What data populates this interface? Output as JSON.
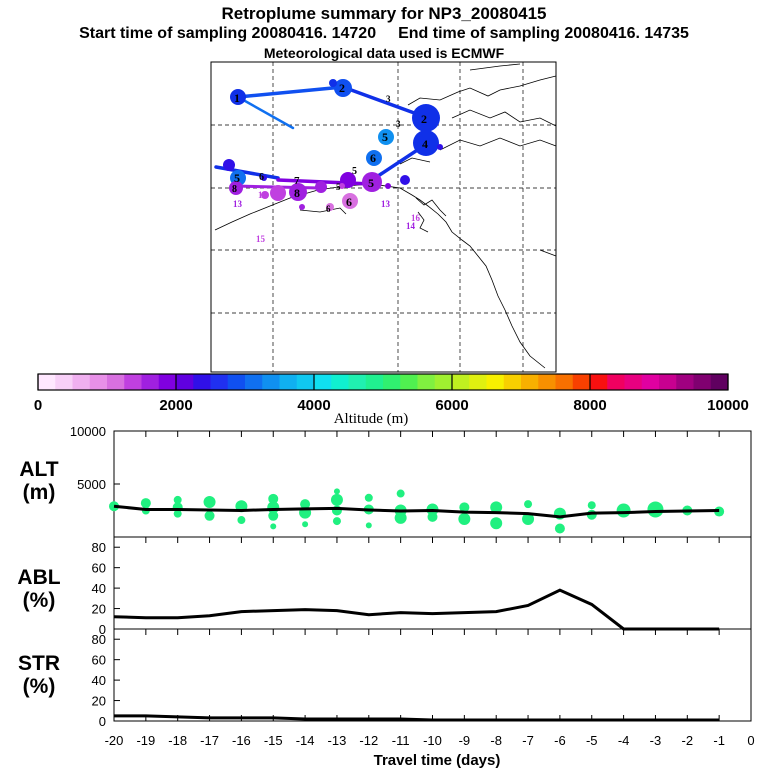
{
  "header": {
    "title": "Retroplume summary for NP3_20080415",
    "start_label": "Start time of sampling 20080416. 14720",
    "end_label": "End time of sampling 20080416. 14735",
    "met_label": "Meteorological data used is ECMWF"
  },
  "colorbar": {
    "min": 0,
    "max": 10000,
    "label": "Altitude (m)",
    "tick_labels": [
      "0",
      "2000",
      "4000",
      "6000",
      "8000",
      "10000"
    ],
    "tick_values": [
      0,
      2000,
      4000,
      6000,
      8000,
      10000
    ],
    "colors": [
      "#ffe8ff",
      "#f8d0f8",
      "#f0b0f0",
      "#e890e8",
      "#d870e0",
      "#c040e0",
      "#a020e0",
      "#8000e0",
      "#6000e0",
      "#3010e8",
      "#2030f0",
      "#1050f0",
      "#1070f0",
      "#1090f0",
      "#10b0f0",
      "#10c8f0",
      "#10e0f0",
      "#10f0d0",
      "#20f0b0",
      "#20f090",
      "#30f070",
      "#50f050",
      "#80f040",
      "#a0f030",
      "#c0f020",
      "#e0f010",
      "#f8f000",
      "#f8d000",
      "#f8b000",
      "#f89000",
      "#f87000",
      "#f84000",
      "#f81010",
      "#f00060",
      "#e80080",
      "#e000a0",
      "#c80090",
      "#a00080",
      "#800070",
      "#600060"
    ]
  },
  "chart_data": [
    {
      "type": "scatter",
      "title": "ALT (m)",
      "ylabel": "ALT (m)",
      "ylim": [
        0,
        10000
      ],
      "xlim": [
        -20,
        0
      ],
      "ytick_labels": [
        "5000",
        "10000"
      ],
      "median_line": {
        "x": [
          -20,
          -19,
          -18,
          -17,
          -16,
          -15,
          -14,
          -13,
          -12,
          -11,
          -10,
          -9,
          -8,
          -7,
          -6,
          -5,
          -4,
          -3,
          -2,
          -1
        ],
        "y": [
          2900,
          2600,
          2600,
          2550,
          2500,
          2600,
          2650,
          2700,
          2550,
          2450,
          2500,
          2350,
          2300,
          2200,
          1900,
          2250,
          2300,
          2400,
          2450,
          2500
        ]
      },
      "clusters": [
        {
          "x": -20,
          "y": [
            2900
          ],
          "size": [
            5
          ]
        },
        {
          "x": -19,
          "y": [
            3200,
            2500
          ],
          "size": [
            5,
            4
          ]
        },
        {
          "x": -18,
          "y": [
            3500,
            2800,
            2200
          ],
          "size": [
            4,
            5,
            4
          ]
        },
        {
          "x": -17,
          "y": [
            3300,
            2000
          ],
          "size": [
            6,
            5
          ]
        },
        {
          "x": -16,
          "y": [
            2900,
            1600
          ],
          "size": [
            6,
            4
          ]
        },
        {
          "x": -15,
          "y": [
            3600,
            2800,
            2000,
            1000
          ],
          "size": [
            5,
            6,
            5,
            3
          ]
        },
        {
          "x": -14,
          "y": [
            3100,
            2300,
            1200
          ],
          "size": [
            5,
            6,
            3
          ]
        },
        {
          "x": -13,
          "y": [
            4300,
            3500,
            2500,
            1500
          ],
          "size": [
            3,
            6,
            5,
            4
          ]
        },
        {
          "x": -12,
          "y": [
            3700,
            2600,
            1100
          ],
          "size": [
            4,
            5,
            3
          ]
        },
        {
          "x": -11,
          "y": [
            4100,
            2500,
            1800
          ],
          "size": [
            4,
            6,
            6
          ]
        },
        {
          "x": -10,
          "y": [
            2600,
            1900
          ],
          "size": [
            6,
            5
          ]
        },
        {
          "x": -9,
          "y": [
            2800,
            1700
          ],
          "size": [
            5,
            6
          ]
        },
        {
          "x": -8,
          "y": [
            2800,
            1300
          ],
          "size": [
            6,
            6
          ]
        },
        {
          "x": -7,
          "y": [
            3100,
            1700
          ],
          "size": [
            4,
            6
          ]
        },
        {
          "x": -6,
          "y": [
            2200,
            800
          ],
          "size": [
            6,
            5
          ]
        },
        {
          "x": -5,
          "y": [
            3000,
            2100
          ],
          "size": [
            4,
            5
          ]
        },
        {
          "x": -4,
          "y": [
            2500
          ],
          "size": [
            7
          ]
        },
        {
          "x": -3,
          "y": [
            2600
          ],
          "size": [
            8
          ]
        },
        {
          "x": -2,
          "y": [
            2500
          ],
          "size": [
            5
          ]
        },
        {
          "x": -1,
          "y": [
            2400
          ],
          "size": [
            5
          ]
        }
      ]
    },
    {
      "type": "line",
      "title": "ABL (%)",
      "ylabel": "ABL (%)",
      "ylim": [
        0,
        90
      ],
      "xlim": [
        -20,
        0
      ],
      "ytick_labels": [
        "0",
        "20",
        "40",
        "60",
        "80"
      ],
      "ytick_values": [
        0,
        20,
        40,
        60,
        80
      ],
      "x": [
        -20,
        -19,
        -18,
        -17,
        -16,
        -15,
        -14,
        -13,
        -12,
        -11,
        -10,
        -9,
        -8,
        -7,
        -6,
        -5,
        -4,
        -3,
        -2,
        -1
      ],
      "y": [
        12,
        11,
        11,
        13,
        17,
        18,
        19,
        18,
        14,
        16,
        15,
        16,
        17,
        23,
        38,
        24,
        0,
        0,
        0,
        0
      ]
    },
    {
      "type": "line",
      "title": "STR (%)",
      "ylabel": "STR (%)",
      "ylim": [
        0,
        90
      ],
      "xlim": [
        -20,
        0
      ],
      "xlabel": "Travel time (days)",
      "ytick_labels": [
        "0",
        "20",
        "40",
        "60",
        "80"
      ],
      "ytick_values": [
        0,
        20,
        40,
        60,
        80
      ],
      "xtick_labels": [
        "-20",
        "-19",
        "-18",
        "-17",
        "-16",
        "-15",
        "-14",
        "-13",
        "-12",
        "-11",
        "-10",
        "-9",
        "-8",
        "-7",
        "-6",
        "-5",
        "-4",
        "-3",
        "-2",
        "-1",
        "0"
      ],
      "x": [
        -20,
        -19,
        -18,
        -17,
        -16,
        -15,
        -14,
        -13,
        -12,
        -11,
        -10,
        -9,
        -8,
        -7,
        -6,
        -5,
        -4,
        -3,
        -2,
        -1
      ],
      "y": [
        5,
        5,
        4,
        3,
        3,
        3,
        2,
        2,
        2,
        2,
        1,
        1,
        1,
        1,
        1,
        1,
        1,
        1,
        1,
        1
      ]
    }
  ],
  "map": {
    "labels": [
      {
        "text": "1",
        "color": "#1030e8"
      },
      {
        "text": "2",
        "color": "#1030e8"
      },
      {
        "text": "3",
        "color": "#1050f0"
      },
      {
        "text": "4",
        "color": "#1030e8"
      },
      {
        "text": "5",
        "color": "#1090f0"
      },
      {
        "text": "6",
        "color": "#1070f0"
      },
      {
        "text": "7",
        "color": "#8000e0"
      },
      {
        "text": "8",
        "color": "#c040e0"
      },
      {
        "text": "13",
        "color": "#a020e0"
      },
      {
        "text": "14",
        "color": "#a020e0"
      },
      {
        "text": "15",
        "color": "#c040e0"
      },
      {
        "text": "16",
        "color": "#c040e0"
      }
    ]
  }
}
